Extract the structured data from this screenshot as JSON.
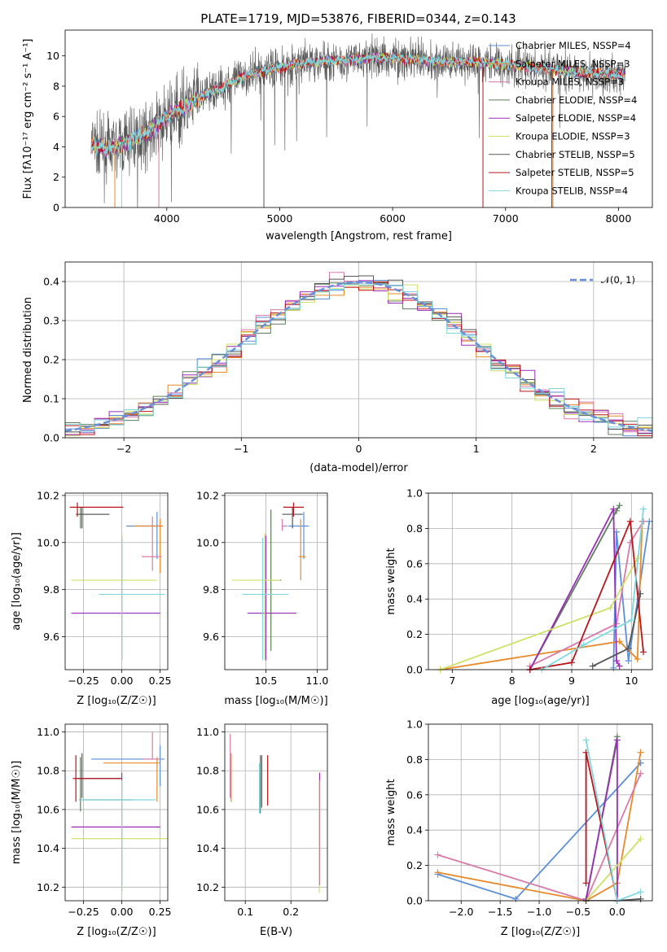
{
  "colors": [
    "#5b8fd9",
    "#e8892b",
    "#d87aa9",
    "#5c7f5a",
    "#9a2eb8",
    "#cfe066",
    "#555555",
    "#b8161c",
    "#7fd8df"
  ],
  "spectrum": {
    "title": "PLATE=1719, MJD=53876, FIBERID=0344, z=0.143",
    "xlabel": "wavelength [Angstrom, rest frame]",
    "ylabel": "Flux [fλ10⁻¹⁷ erg cm⁻² s⁻¹ A⁻¹]",
    "legend": [
      "Chabrier MILES, NSSP=4",
      "Salpeter MILES, NSSP=3",
      "Kroupa MILES, NSSP=3",
      "Chabrier ELODIE, NSSP=4",
      "Salpeter ELODIE, NSSP=4",
      "Kroupa ELODIE, NSSP=3",
      "Chabrier STELIB, NSSP=5",
      "Salpeter STELIB, NSSP=5",
      "Kroupa STELIB, NSSP=4"
    ],
    "xticks": [
      "4000",
      "5000",
      "6000",
      "7000",
      "8000"
    ],
    "yticks": [
      "0",
      "2",
      "4",
      "6",
      "8",
      "10"
    ]
  },
  "residuals": {
    "xlabel": "(data-model)/error",
    "ylabel": "Normed distribution",
    "legend": "𝒩(0, 1)",
    "xticks": [
      "−2",
      "−1",
      "0",
      "1",
      "2"
    ],
    "yticks": [
      "0.0",
      "0.1",
      "0.2",
      "0.3",
      "0.4"
    ]
  },
  "p_age_z": {
    "xlabel": "Z [log₁₀(Z/Z☉)]",
    "ylabel": "age  [log₁₀(age/yr)]",
    "xticks": [
      "−0.25",
      "0.00",
      "0.25"
    ],
    "yticks": [
      "9.6",
      "9.8",
      "10.0",
      "10.2"
    ]
  },
  "p_age_mass": {
    "xlabel": "mass [log₁₀(M/M☉)]",
    "xticks": [
      "10.5",
      "11.0"
    ],
    "yticks": [
      "9.6",
      "9.8",
      "10.0",
      "10.2"
    ]
  },
  "p_mw_age": {
    "xlabel": "age  [log₁₀(age/yr)]",
    "ylabel": "mass weight",
    "xticks": [
      "7",
      "8",
      "9",
      "10"
    ],
    "yticks": [
      "0.0",
      "0.2",
      "0.4",
      "0.6",
      "0.8",
      "1.0"
    ]
  },
  "p_mass_z": {
    "xlabel": "Z [log₁₀(Z/Z☉)]",
    "ylabel": "mass [log₁₀(M/M☉)]",
    "xticks": [
      "−0.25",
      "0.00",
      "0.25"
    ],
    "yticks": [
      "10.2",
      "10.4",
      "10.6",
      "10.8",
      "11.0"
    ]
  },
  "p_mass_ebv": {
    "xlabel": "E(B-V)",
    "xticks": [
      "0.1",
      "0.2"
    ],
    "yticks": [
      "10.2",
      "10.4",
      "10.6",
      "10.8",
      "11.0"
    ]
  },
  "p_mw_z": {
    "xlabel": "Z [log₁₀(Z/Z☉)]",
    "ylabel": "mass weight",
    "xticks": [
      "−2.0",
      "−1.5",
      "−1.0",
      "−0.5",
      "0.0"
    ],
    "yticks": [
      "0.0",
      "0.2",
      "0.4",
      "0.6",
      "0.8",
      "1.0"
    ]
  },
  "chart_data": [
    {
      "type": "line",
      "title": "PLATE=1719, MJD=53876, FIBERID=0344, z=0.143",
      "xlim": [
        3100,
        8300
      ],
      "ylim": [
        0,
        11.7
      ],
      "spectrum_anchors": {
        "x": [
          3350,
          3450,
          3550,
          3650,
          3750,
          3850,
          3950,
          4050,
          4150,
          4300,
          4500,
          4700,
          4900,
          5100,
          5300,
          5500,
          5700,
          5900,
          6100,
          6300,
          6500,
          6700,
          6900,
          7100,
          7300,
          7500,
          7700,
          7900,
          8050
        ],
        "y": [
          4.1,
          3.9,
          3.9,
          4.3,
          4.6,
          5.0,
          5.6,
          6.2,
          6.6,
          7.3,
          8.0,
          8.7,
          9.1,
          9.4,
          9.6,
          9.7,
          9.8,
          9.9,
          9.8,
          9.7,
          9.6,
          9.6,
          9.5,
          9.4,
          9.2,
          9.0,
          8.9,
          8.8,
          8.8
        ]
      }
    },
    {
      "type": "line",
      "xlim": [
        -2.5,
        2.5
      ],
      "ylim": [
        0,
        0.45
      ],
      "gaussian": {
        "mean": 0,
        "sigma": 1
      },
      "step_series_bins": 40
    },
    {
      "type": "scatter",
      "x_name": "Z",
      "y_name": "age",
      "xlim": [
        -0.37,
        0.3
      ],
      "ylim": [
        9.46,
        10.21
      ],
      "points": [
        {
          "x": 0.23,
          "y": 10.07,
          "xerr": [
            0.2,
            0.03
          ],
          "yerr": [
            0.14,
            0.06
          ]
        },
        {
          "x": 0.25,
          "y": 10.07,
          "xerr": [
            0.17,
            0.02
          ],
          "yerr": [
            0.2,
            0.03
          ]
        },
        {
          "x": 0.2,
          "y": 9.94,
          "xerr": [
            0.07,
            0.06
          ],
          "yerr": [
            0.06,
            0.17
          ]
        },
        {
          "x": -0.27,
          "y": 10.12,
          "xerr": [
            0.02,
            0.18
          ],
          "yerr": [
            0.06,
            0.03
          ]
        },
        {
          "x": 0.0,
          "y": 9.7,
          "xerr": [
            0.33,
            0.25
          ],
          "yerr": [
            0.2,
            0.33
          ]
        },
        {
          "x": 0.0,
          "y": 9.84,
          "xerr": [
            0.33,
            0.23
          ],
          "yerr": [
            0.34,
            0.2
          ]
        },
        {
          "x": -0.26,
          "y": 10.12,
          "xerr": [
            0.04,
            0.18
          ],
          "yerr": [
            0.06,
            0.03
          ]
        },
        {
          "x": -0.29,
          "y": 10.15,
          "xerr": [
            0.05,
            0.3
          ],
          "yerr": [
            0.04,
            0.02
          ]
        },
        {
          "x": 0.0,
          "y": 9.78,
          "xerr": [
            0.15,
            0.28
          ],
          "yerr": [
            0.28,
            0.24
          ]
        }
      ]
    },
    {
      "type": "scatter",
      "x_name": "mass",
      "y_name": "age",
      "xlim": [
        10.1,
        11.1
      ],
      "ylim": [
        9.46,
        10.21
      ],
      "points": [
        {
          "x": 10.87,
          "y": 10.07,
          "xerr": [
            0.15,
            0.05
          ],
          "yerr": [
            0.14,
            0.06
          ]
        },
        {
          "x": 10.84,
          "y": 9.94,
          "xerr": [
            0.02,
            0.05
          ],
          "yerr": [
            0.1,
            0.16
          ]
        },
        {
          "x": 10.66,
          "y": 10.07,
          "xerr": [
            0.0,
            0.05
          ],
          "yerr": [
            0.02,
            0.03
          ]
        },
        {
          "x": 10.55,
          "y": 9.84,
          "xerr": [
            0.05,
            0.1
          ],
          "yerr": [
            0.3,
            0.3
          ]
        },
        {
          "x": 10.5,
          "y": 9.7,
          "xerr": [
            0.18,
            0.3
          ],
          "yerr": [
            0.2,
            0.33
          ]
        },
        {
          "x": 10.49,
          "y": 9.84,
          "xerr": [
            0.32,
            0.15
          ],
          "yerr": [
            0.34,
            0.2
          ]
        },
        {
          "x": 10.76,
          "y": 10.12,
          "xerr": [
            0.1,
            0.1
          ],
          "yerr": [
            0.06,
            0.03
          ]
        },
        {
          "x": 10.77,
          "y": 10.15,
          "xerr": [
            0.1,
            0.1
          ],
          "yerr": [
            0.04,
            0.02
          ]
        },
        {
          "x": 10.47,
          "y": 9.78,
          "xerr": [
            0.2,
            0.25
          ],
          "yerr": [
            0.28,
            0.24
          ]
        }
      ]
    },
    {
      "type": "line",
      "x_name": "age",
      "y_name": "mass weight",
      "xlim": [
        6.6,
        10.35
      ],
      "ylim": [
        0,
        1
      ],
      "series": [
        {
          "x": [
            9.7,
            9.75,
            9.95,
            10.3
          ],
          "y": [
            0.01,
            0.78,
            0.05,
            0.84
          ]
        },
        {
          "x": [
            6.8,
            9.8,
            10.1,
            10.18
          ],
          "y": [
            0.0,
            0.16,
            0.06,
            0.84
          ]
        },
        {
          "x": [
            8.3,
            9.75,
            9.98,
            10.2
          ],
          "y": [
            0.02,
            0.26,
            0.72,
            0.84
          ]
        },
        {
          "x": [
            8.3,
            9.75,
            9.8
          ],
          "y": [
            0.0,
            0.9,
            0.93
          ]
        },
        {
          "x": [
            8.3,
            9.7,
            9.75,
            9.8
          ],
          "y": [
            0.0,
            0.91,
            0.05,
            0.02
          ]
        },
        {
          "x": [
            6.8,
            9.65,
            10.1
          ],
          "y": [
            0.0,
            0.35,
            0.63
          ]
        },
        {
          "x": [
            9.35,
            9.95,
            10.15
          ],
          "y": [
            0.02,
            0.12,
            0.43
          ]
        },
        {
          "x": [
            8.3,
            9.0,
            9.98,
            10.2
          ],
          "y": [
            0.0,
            0.04,
            0.84,
            0.1
          ]
        },
        {
          "x": [
            8.5,
            9.2,
            10.0,
            10.2
          ],
          "y": [
            0.0,
            0.14,
            0.28,
            0.91
          ]
        }
      ]
    },
    {
      "type": "scatter",
      "x_name": "Z",
      "y_name": "mass",
      "xlim": [
        -0.37,
        0.3
      ],
      "ylim": [
        10.13,
        11.04
      ],
      "points": [
        {
          "x": 0.25,
          "y": 10.86,
          "xerr": [
            0.45,
            0.03
          ],
          "yerr": [
            0.14,
            0.07
          ]
        },
        {
          "x": 0.23,
          "y": 10.84,
          "xerr": [
            0.35,
            0.02
          ],
          "yerr": [
            0.2,
            0.03
          ]
        },
        {
          "x": 0.2,
          "y": 10.86,
          "xerr": [
            0.06,
            0.05
          ],
          "yerr": [
            0.0,
            0.14
          ]
        },
        {
          "x": -0.27,
          "y": 10.65,
          "xerr": [
            0.01,
            0.34
          ],
          "yerr": [
            0.06,
            0.22
          ]
        },
        {
          "x": 0.0,
          "y": 10.51,
          "xerr": [
            0.33,
            0.25
          ],
          "yerr": [
            0.3,
            0.28
          ]
        },
        {
          "x": 0.0,
          "y": 10.45,
          "xerr": [
            0.33,
            0.3
          ],
          "yerr": [
            0.28,
            0.3
          ]
        },
        {
          "x": -0.26,
          "y": 10.76,
          "xerr": [
            0.04,
            0.25
          ],
          "yerr": [
            0.1,
            0.13
          ]
        },
        {
          "x": -0.3,
          "y": 10.76,
          "xerr": [
            0.02,
            0.3
          ],
          "yerr": [
            0.12,
            0.12
          ]
        },
        {
          "x": 0.0,
          "y": 10.65,
          "xerr": [
            0.28,
            0.22
          ],
          "yerr": [
            0.47,
            0.1
          ]
        }
      ]
    },
    {
      "type": "scatter",
      "x_name": "E(B-V)",
      "y_name": "mass",
      "xlim": [
        0.055,
        0.28
      ],
      "ylim": [
        10.13,
        11.04
      ],
      "points": [
        {
          "x": 0.067,
          "y": 10.86,
          "xerr": [
            0,
            0
          ],
          "yerr": [
            0.2,
            0.0
          ]
        },
        {
          "x": 0.069,
          "y": 10.84,
          "xerr": [
            0,
            0
          ],
          "yerr": [
            0.2,
            0.05
          ]
        },
        {
          "x": 0.067,
          "y": 10.86,
          "xerr": [
            0,
            0
          ],
          "yerr": [
            0.2,
            0.13
          ]
        },
        {
          "x": 0.133,
          "y": 10.73,
          "xerr": [
            0,
            0
          ],
          "yerr": [
            0.15,
            0.15
          ]
        },
        {
          "x": 0.263,
          "y": 10.51,
          "xerr": [
            0,
            0
          ],
          "yerr": [
            0.3,
            0.28
          ]
        },
        {
          "x": 0.262,
          "y": 10.45,
          "xerr": [
            0,
            0
          ],
          "yerr": [
            0.28,
            0.3
          ]
        },
        {
          "x": 0.136,
          "y": 10.73,
          "xerr": [
            0,
            0
          ],
          "yerr": [
            0.12,
            0.15
          ]
        },
        {
          "x": 0.149,
          "y": 10.74,
          "xerr": [
            0,
            0
          ],
          "yerr": [
            0.12,
            0.14
          ]
        },
        {
          "x": 0.131,
          "y": 10.72,
          "xerr": [
            0,
            0
          ],
          "yerr": [
            0.14,
            0.12
          ]
        }
      ]
    },
    {
      "type": "line",
      "x_name": "Z",
      "y_name": "mass weight",
      "xlim": [
        -2.42,
        0.45
      ],
      "ylim": [
        0,
        1
      ],
      "series": [
        {
          "x": [
            -2.3,
            -1.3,
            0.3
          ],
          "y": [
            0.15,
            0.01,
            0.78
          ]
        },
        {
          "x": [
            -2.3,
            -0.4,
            0.0,
            0.3
          ],
          "y": [
            0.16,
            0.0,
            0.1,
            0.84
          ]
        },
        {
          "x": [
            -2.3,
            -0.4,
            0.3
          ],
          "y": [
            0.26,
            0.0,
            0.72
          ]
        },
        {
          "x": [
            -0.4,
            0.0
          ],
          "y": [
            0.0,
            0.93
          ]
        },
        {
          "x": [
            -0.4,
            0.0,
            0.0
          ],
          "y": [
            0.01,
            0.91,
            0.0
          ]
        },
        {
          "x": [
            -0.4,
            0.3
          ],
          "y": [
            0.0,
            0.35
          ]
        },
        {
          "x": [
            -0.4,
            0.0,
            0.3
          ],
          "y": [
            0.0,
            0.0,
            0.01
          ]
        },
        {
          "x": [
            -0.4,
            -0.4,
            0.0
          ],
          "y": [
            0.1,
            0.84,
            0.0
          ]
        },
        {
          "x": [
            -0.4,
            0.0,
            0.3
          ],
          "y": [
            0.91,
            0.0,
            0.05
          ]
        }
      ]
    }
  ]
}
